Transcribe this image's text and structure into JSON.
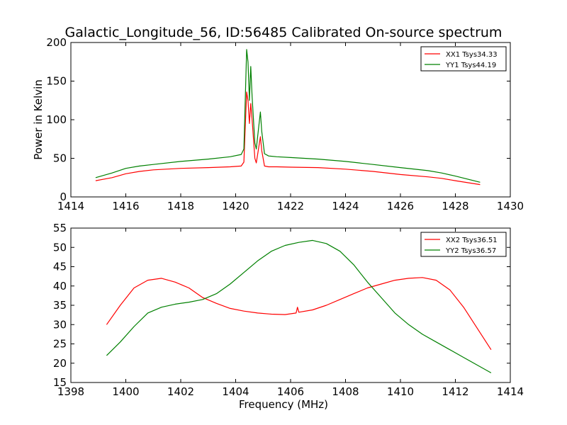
{
  "figure": {
    "title": "Galactic_Longitude_56, ID:56485 Calibrated On-source spectrum",
    "ylabel": "Power in Kelvin",
    "xlabel": "Frequency (MHz)"
  },
  "chart_data": [
    {
      "type": "line",
      "title": "Galactic_Longitude_56, ID:56485 Calibrated On-source spectrum",
      "xlabel": "",
      "ylabel": "Power in Kelvin",
      "xlim": [
        1414,
        1430
      ],
      "ylim": [
        0,
        200
      ],
      "xticks": [
        1414,
        1416,
        1418,
        1420,
        1422,
        1424,
        1426,
        1428,
        1430
      ],
      "yticks": [
        0,
        50,
        100,
        150,
        200
      ],
      "legend": "top-right",
      "series": [
        {
          "name": "XX1 Tsys34.33",
          "color": "#ff0000",
          "x": [
            1414.9,
            1415.5,
            1416.0,
            1416.5,
            1417.0,
            1418.0,
            1419.0,
            1419.8,
            1420.2,
            1420.3,
            1420.4,
            1420.45,
            1420.5,
            1420.55,
            1420.6,
            1420.7,
            1420.75,
            1420.8,
            1420.9,
            1420.95,
            1421.05,
            1421.2,
            1421.5,
            1422.0,
            1423.0,
            1424.0,
            1425.0,
            1426.0,
            1427.0,
            1427.5,
            1428.0,
            1428.9
          ],
          "y": [
            21,
            25,
            30,
            33,
            35,
            37,
            38,
            39,
            40,
            45,
            136,
            125,
            95,
            121,
            100,
            50,
            44,
            55,
            78,
            60,
            40,
            39,
            39,
            38.5,
            38,
            36,
            33,
            29,
            26,
            24,
            21,
            16
          ]
        },
        {
          "name": "YY1 Tsys44.19",
          "color": "#008000",
          "x": [
            1414.9,
            1415.5,
            1416.0,
            1416.5,
            1417.0,
            1418.0,
            1419.0,
            1419.8,
            1420.2,
            1420.3,
            1420.4,
            1420.45,
            1420.5,
            1420.55,
            1420.6,
            1420.7,
            1420.75,
            1420.8,
            1420.9,
            1420.95,
            1421.05,
            1421.2,
            1421.5,
            1422.0,
            1423.0,
            1424.0,
            1425.0,
            1426.0,
            1427.0,
            1427.5,
            1428.0,
            1428.9
          ],
          "y": [
            25,
            31,
            37,
            40,
            42,
            46,
            49,
            52,
            55,
            62,
            191,
            175,
            125,
            169,
            130,
            70,
            62,
            78,
            110,
            85,
            56,
            53,
            52,
            51,
            49,
            46,
            42,
            38,
            34,
            31,
            27,
            19
          ]
        }
      ]
    },
    {
      "type": "line",
      "title": "",
      "xlabel": "Frequency (MHz)",
      "ylabel": "",
      "xlim": [
        1398,
        1414
      ],
      "ylim": [
        15,
        55
      ],
      "xticks": [
        1398,
        1400,
        1402,
        1404,
        1406,
        1408,
        1410,
        1412,
        1414
      ],
      "yticks": [
        15,
        20,
        25,
        30,
        35,
        40,
        45,
        50,
        55
      ],
      "legend": "top-right",
      "series": [
        {
          "name": "XX2 Tsys36.51",
          "color": "#ff0000",
          "x": [
            1399.3,
            1399.8,
            1400.3,
            1400.8,
            1401.3,
            1401.8,
            1402.3,
            1402.8,
            1403.3,
            1403.8,
            1404.3,
            1404.8,
            1405.3,
            1405.8,
            1406.2,
            1406.25,
            1406.3,
            1406.8,
            1407.3,
            1407.8,
            1408.3,
            1408.8,
            1409.3,
            1409.8,
            1410.3,
            1410.8,
            1411.3,
            1411.8,
            1412.3,
            1412.8,
            1413.3
          ],
          "y": [
            30,
            35,
            39.5,
            41.5,
            42,
            41,
            39.5,
            37,
            35.5,
            34.2,
            33.5,
            33,
            32.7,
            32.6,
            33,
            34.5,
            33.2,
            33.8,
            35,
            36.5,
            38,
            39.5,
            40.5,
            41.5,
            42,
            42.2,
            41.5,
            39,
            34.5,
            29,
            23.5
          ]
        },
        {
          "name": "YY2 Tsys36.57",
          "color": "#008000",
          "x": [
            1399.3,
            1399.8,
            1400.3,
            1400.8,
            1401.3,
            1401.8,
            1402.3,
            1402.8,
            1403.3,
            1403.8,
            1404.3,
            1404.8,
            1405.3,
            1405.8,
            1406.3,
            1406.8,
            1407.3,
            1407.8,
            1408.3,
            1408.8,
            1409.3,
            1409.8,
            1410.3,
            1410.8,
            1411.3,
            1411.8,
            1412.3,
            1412.8,
            1413.3
          ],
          "y": [
            22,
            25.5,
            29.5,
            33,
            34.5,
            35.3,
            35.8,
            36.5,
            38,
            40.5,
            43.5,
            46.5,
            49,
            50.5,
            51.3,
            51.8,
            51,
            49,
            45.5,
            41,
            37,
            33,
            30,
            27.5,
            25.5,
            23.5,
            21.5,
            19.5,
            17.5
          ]
        }
      ]
    }
  ]
}
